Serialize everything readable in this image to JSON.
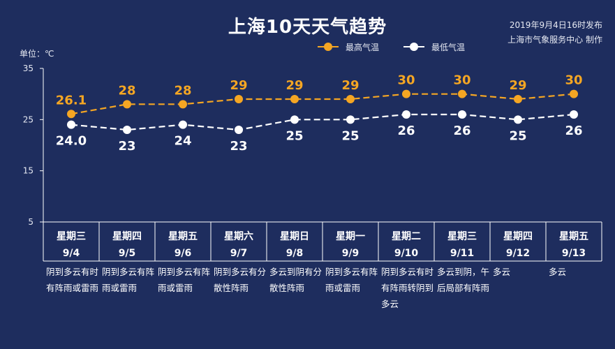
{
  "title": "上海10天天气趋势",
  "publish": {
    "time": "2019年9月4日16时发布",
    "agency": "上海市气象服务中心 制作"
  },
  "unit_label": "单位：℃",
  "colors": {
    "background": "#1e2d5e",
    "high": "#f5a623",
    "low": "#ffffff",
    "grid": "#ffffff"
  },
  "chart_data": {
    "type": "line",
    "ylim": [
      5,
      35
    ],
    "yticks": [
      "5",
      "15",
      "25",
      "35"
    ],
    "grid": false,
    "legend_position": "top-center",
    "categories": [
      {
        "weekday": "星期三",
        "date": "9/4"
      },
      {
        "weekday": "星期四",
        "date": "9/5"
      },
      {
        "weekday": "星期五",
        "date": "9/6"
      },
      {
        "weekday": "星期六",
        "date": "9/7"
      },
      {
        "weekday": "星期日",
        "date": "9/8"
      },
      {
        "weekday": "星期一",
        "date": "9/9"
      },
      {
        "weekday": "星期二",
        "date": "9/10"
      },
      {
        "weekday": "星期三",
        "date": "9/11"
      },
      {
        "weekday": "星期四",
        "date": "9/12"
      },
      {
        "weekday": "星期五",
        "date": "9/13"
      }
    ],
    "series": [
      {
        "name": "最高气温",
        "values": [
          26.1,
          28,
          28,
          29,
          29,
          29,
          30,
          30,
          29,
          30
        ],
        "labels": [
          "26.1",
          "28",
          "28",
          "29",
          "29",
          "29",
          "30",
          "30",
          "29",
          "30"
        ]
      },
      {
        "name": "最低气温",
        "values": [
          24.0,
          23,
          24,
          23,
          25,
          25,
          26,
          26,
          25,
          26
        ],
        "labels": [
          "24.0",
          "23",
          "24",
          "23",
          "25",
          "25",
          "26",
          "26",
          "25",
          "26"
        ]
      }
    ],
    "weather": [
      "阴到多云有时有阵雨或雷雨",
      "阴到多云有阵雨或雷雨",
      "阴到多云有阵雨或雷雨",
      "阴到多云有分散性阵雨",
      "多云到阴有分散性阵雨",
      "阴到多云有阵雨或雷雨",
      "阴到多云有时有阵雨转阴到多云",
      "多云到阴，午后局部有阵雨",
      "多云",
      "多云"
    ]
  }
}
